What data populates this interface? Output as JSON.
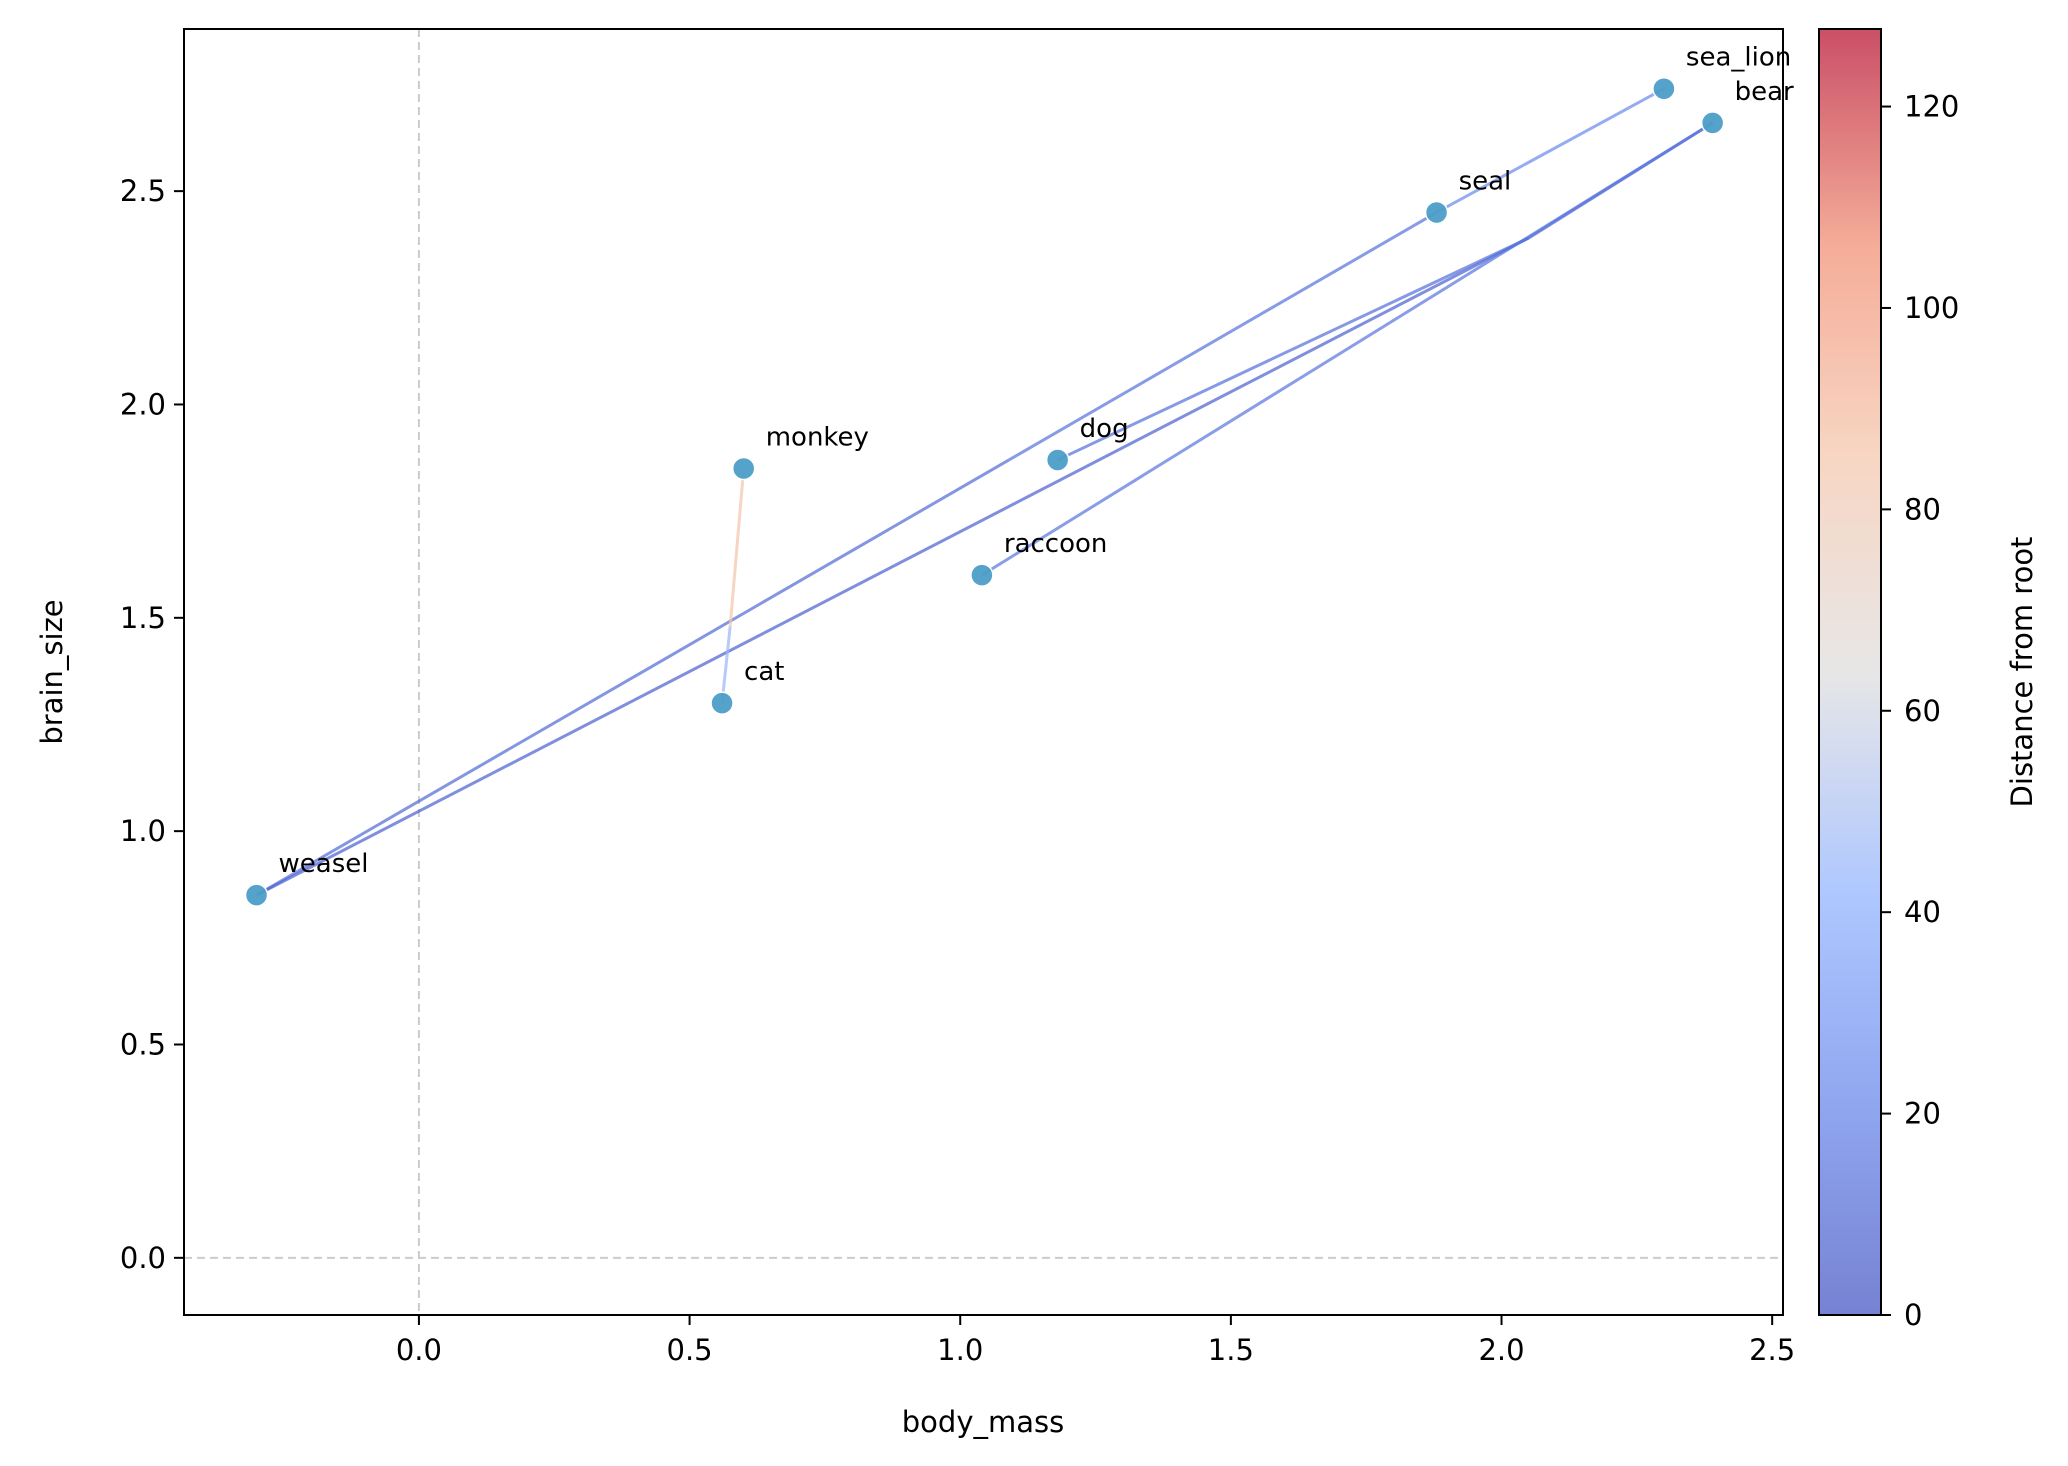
{
  "chart_data": {
    "type": "scatter",
    "xlabel": "body_mass",
    "ylabel": "brain_size",
    "xlim": [
      -0.434,
      2.52
    ],
    "ylim": [
      -0.134,
      2.88
    ],
    "xticks": [
      "0.0",
      "0.5",
      "1.0",
      "1.5",
      "2.0",
      "2.5"
    ],
    "xtick_values": [
      0,
      0.5,
      1.0,
      1.5,
      2.0,
      2.5
    ],
    "yticks": [
      "0.0",
      "0.5",
      "1.0",
      "1.5",
      "2.0",
      "2.5"
    ],
    "ytick_values": [
      0,
      0.5,
      1.0,
      1.5,
      2.0,
      2.5
    ],
    "reference_lines": {
      "x": 0,
      "y": 0,
      "style": "dashed",
      "color": "#cccccc"
    },
    "grid": false,
    "point_color": "#4c9ec9",
    "points": [
      {
        "label": "weasel",
        "x": -0.3,
        "y": 0.85
      },
      {
        "label": "cat",
        "x": 0.56,
        "y": 1.3
      },
      {
        "label": "monkey",
        "x": 0.6,
        "y": 1.85
      },
      {
        "label": "raccoon",
        "x": 1.04,
        "y": 1.6
      },
      {
        "label": "dog",
        "x": 1.18,
        "y": 1.87
      },
      {
        "label": "seal",
        "x": 1.88,
        "y": 2.45
      },
      {
        "label": "sea_lion",
        "x": 2.3,
        "y": 2.74
      },
      {
        "label": "bear",
        "x": 2.39,
        "y": 2.66
      }
    ],
    "branches": [
      {
        "x": [
          -0.3,
          1.09
        ],
        "y": [
          0.85,
          1.87
        ],
        "distance": 12
      },
      {
        "x": [
          -0.3,
          2.05
        ],
        "y": [
          0.85,
          2.39
        ],
        "distance": 8
      },
      {
        "x": [
          1.09,
          1.88
        ],
        "y": [
          1.87,
          2.45
        ],
        "distance": 15
      },
      {
        "x": [
          1.88,
          2.3
        ],
        "y": [
          2.45,
          2.74
        ],
        "distance": 25
      },
      {
        "x": [
          2.05,
          2.39
        ],
        "y": [
          2.39,
          2.66
        ],
        "distance": 8
      },
      {
        "x": [
          2.05,
          1.18
        ],
        "y": [
          2.39,
          1.87
        ],
        "distance": 14
      },
      {
        "x": [
          2.39,
          1.04
        ],
        "y": [
          2.66,
          1.6
        ],
        "distance": 16
      },
      {
        "x": [
          0.575,
          0.6
        ],
        "y": [
          1.48,
          1.85
        ],
        "distance": 85
      },
      {
        "x": [
          0.575,
          0.56
        ],
        "y": [
          1.48,
          1.3
        ],
        "distance": 45
      }
    ],
    "colorbar": {
      "label": "Distance from root",
      "cmap": "coolwarm",
      "range": [
        0,
        127.7
      ],
      "ticks": [
        "0",
        "20",
        "40",
        "60",
        "80",
        "100",
        "120"
      ],
      "tick_values": [
        0,
        20,
        40,
        60,
        80,
        100,
        120
      ]
    }
  }
}
